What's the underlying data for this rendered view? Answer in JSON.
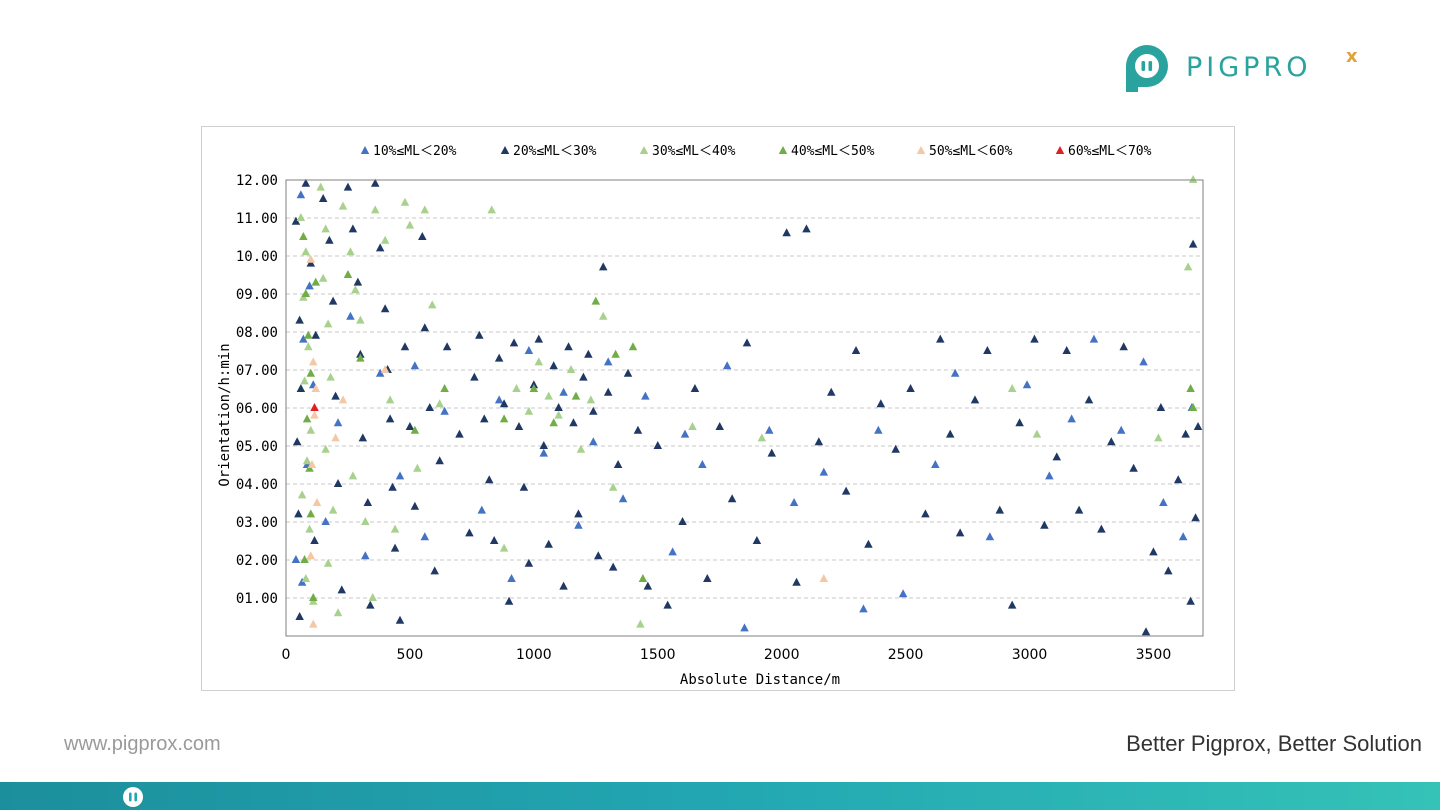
{
  "brand": {
    "name": "PIGPRO",
    "suffix": "x",
    "color_primary": "#2aa39e",
    "color_accent": "#e0a23a"
  },
  "footer": {
    "url": "www.pigprox.com",
    "slogan": "Better Pigprox, Better Solution",
    "bar_color": "#22a7b2"
  },
  "chart_data": {
    "type": "scatter",
    "marker": "triangle",
    "xlabel": "Absolute Distance/m",
    "ylabel": "Orientation/h:min",
    "xlim": [
      0,
      3700
    ],
    "ylim": [
      0,
      12
    ],
    "xticks": [
      0,
      500,
      1000,
      1500,
      2000,
      2500,
      3000,
      3500
    ],
    "yticks": [
      1,
      2,
      3,
      4,
      5,
      6,
      7,
      8,
      9,
      10,
      11,
      12
    ],
    "ytick_labels": [
      "01.00",
      "02.00",
      "03.00",
      "04.00",
      "05.00",
      "06.00",
      "07.00",
      "08.00",
      "09.00",
      "10.00",
      "11.00",
      "12.00"
    ],
    "grid": "horizontal dashed",
    "legend_position": "top",
    "series": [
      {
        "name": "10%≤ML＜20%",
        "color": "#4472c4",
        "points": [
          [
            60,
            11.6
          ],
          [
            70,
            7.8
          ],
          [
            85,
            4.5
          ],
          [
            40,
            2.0
          ],
          [
            65,
            1.4
          ],
          [
            95,
            9.2
          ],
          [
            110,
            6.6
          ],
          [
            160,
            3.0
          ],
          [
            210,
            5.6
          ],
          [
            260,
            8.4
          ],
          [
            320,
            2.1
          ],
          [
            380,
            6.9
          ],
          [
            460,
            4.2
          ],
          [
            520,
            7.1
          ],
          [
            560,
            2.6
          ],
          [
            640,
            5.9
          ],
          [
            790,
            3.3
          ],
          [
            860,
            6.2
          ],
          [
            910,
            1.5
          ],
          [
            980,
            7.5
          ],
          [
            1040,
            4.8
          ],
          [
            1120,
            6.4
          ],
          [
            1180,
            2.9
          ],
          [
            1240,
            5.1
          ],
          [
            1300,
            7.2
          ],
          [
            1360,
            3.6
          ],
          [
            1450,
            6.3
          ],
          [
            1560,
            2.2
          ],
          [
            1610,
            5.3
          ],
          [
            1680,
            4.5
          ],
          [
            1780,
            7.1
          ],
          [
            1850,
            0.2
          ],
          [
            1950,
            5.4
          ],
          [
            2050,
            3.5
          ],
          [
            2170,
            4.3
          ],
          [
            2330,
            0.7
          ],
          [
            2390,
            5.4
          ],
          [
            2490,
            1.1
          ],
          [
            2620,
            4.5
          ],
          [
            2700,
            6.9
          ],
          [
            2840,
            2.6
          ],
          [
            2990,
            6.6
          ],
          [
            3080,
            4.2
          ],
          [
            3170,
            5.7
          ],
          [
            3260,
            7.8
          ],
          [
            3370,
            5.4
          ],
          [
            3460,
            7.2
          ],
          [
            3540,
            3.5
          ],
          [
            3620,
            2.6
          ],
          [
            3655,
            6.0
          ]
        ]
      },
      {
        "name": "20%≤ML＜30%",
        "color": "#203864",
        "points": [
          [
            40,
            10.9
          ],
          [
            55,
            8.3
          ],
          [
            60,
            6.5
          ],
          [
            45,
            5.1
          ],
          [
            50,
            3.2
          ],
          [
            55,
            0.5
          ],
          [
            80,
            11.9
          ],
          [
            100,
            9.8
          ],
          [
            120,
            7.9
          ],
          [
            115,
            2.5
          ],
          [
            150,
            11.5
          ],
          [
            175,
            10.4
          ],
          [
            190,
            8.8
          ],
          [
            200,
            6.3
          ],
          [
            210,
            4.0
          ],
          [
            225,
            1.2
          ],
          [
            250,
            11.8
          ],
          [
            270,
            10.7
          ],
          [
            290,
            9.3
          ],
          [
            300,
            7.4
          ],
          [
            310,
            5.2
          ],
          [
            330,
            3.5
          ],
          [
            340,
            0.8
          ],
          [
            360,
            11.9
          ],
          [
            380,
            10.2
          ],
          [
            400,
            8.6
          ],
          [
            410,
            7.0
          ],
          [
            420,
            5.7
          ],
          [
            430,
            3.9
          ],
          [
            440,
            2.3
          ],
          [
            460,
            0.4
          ],
          [
            480,
            7.6
          ],
          [
            500,
            5.5
          ],
          [
            520,
            3.4
          ],
          [
            550,
            10.5
          ],
          [
            560,
            8.1
          ],
          [
            580,
            6.0
          ],
          [
            600,
            1.7
          ],
          [
            620,
            4.6
          ],
          [
            650,
            7.6
          ],
          [
            700,
            5.3
          ],
          [
            740,
            2.7
          ],
          [
            760,
            6.8
          ],
          [
            780,
            7.9
          ],
          [
            800,
            5.7
          ],
          [
            820,
            4.1
          ],
          [
            840,
            2.5
          ],
          [
            860,
            7.3
          ],
          [
            880,
            6.1
          ],
          [
            900,
            0.9
          ],
          [
            920,
            7.7
          ],
          [
            940,
            5.5
          ],
          [
            960,
            3.9
          ],
          [
            980,
            1.9
          ],
          [
            1000,
            6.6
          ],
          [
            1020,
            7.8
          ],
          [
            1040,
            5.0
          ],
          [
            1060,
            2.4
          ],
          [
            1080,
            7.1
          ],
          [
            1100,
            6.0
          ],
          [
            1120,
            1.3
          ],
          [
            1140,
            7.6
          ],
          [
            1160,
            5.6
          ],
          [
            1180,
            3.2
          ],
          [
            1200,
            6.8
          ],
          [
            1220,
            7.4
          ],
          [
            1240,
            5.9
          ],
          [
            1260,
            2.1
          ],
          [
            1280,
            9.7
          ],
          [
            1300,
            6.4
          ],
          [
            1320,
            1.8
          ],
          [
            1340,
            4.5
          ],
          [
            1380,
            6.9
          ],
          [
            1420,
            5.4
          ],
          [
            1460,
            1.3
          ],
          [
            1500,
            5.0
          ],
          [
            1540,
            0.8
          ],
          [
            1600,
            3.0
          ],
          [
            1650,
            6.5
          ],
          [
            1700,
            1.5
          ],
          [
            1750,
            5.5
          ],
          [
            1800,
            3.6
          ],
          [
            1860,
            7.7
          ],
          [
            1900,
            2.5
          ],
          [
            1960,
            4.8
          ],
          [
            2020,
            10.6
          ],
          [
            2060,
            1.4
          ],
          [
            2100,
            10.7
          ],
          [
            2150,
            5.1
          ],
          [
            2200,
            6.4
          ],
          [
            2260,
            3.8
          ],
          [
            2300,
            7.5
          ],
          [
            2350,
            2.4
          ],
          [
            2400,
            6.1
          ],
          [
            2460,
            4.9
          ],
          [
            2520,
            6.5
          ],
          [
            2580,
            3.2
          ],
          [
            2640,
            7.8
          ],
          [
            2680,
            5.3
          ],
          [
            2720,
            2.7
          ],
          [
            2780,
            6.2
          ],
          [
            2830,
            7.5
          ],
          [
            2880,
            3.3
          ],
          [
            2930,
            0.8
          ],
          [
            2960,
            5.6
          ],
          [
            3020,
            7.8
          ],
          [
            3060,
            2.9
          ],
          [
            3110,
            4.7
          ],
          [
            3150,
            7.5
          ],
          [
            3200,
            3.3
          ],
          [
            3240,
            6.2
          ],
          [
            3290,
            2.8
          ],
          [
            3330,
            5.1
          ],
          [
            3380,
            7.6
          ],
          [
            3420,
            4.4
          ],
          [
            3470,
            0.1
          ],
          [
            3500,
            2.2
          ],
          [
            3530,
            6.0
          ],
          [
            3560,
            1.7
          ],
          [
            3600,
            4.1
          ],
          [
            3630,
            5.3
          ],
          [
            3650,
            0.9
          ],
          [
            3660,
            10.3
          ],
          [
            3670,
            3.1
          ],
          [
            3680,
            5.5
          ]
        ]
      },
      {
        "name": "30%≤ML＜40%",
        "color": "#a9d18e",
        "points": [
          [
            60,
            11.0
          ],
          [
            80,
            10.1
          ],
          [
            70,
            8.9
          ],
          [
            90,
            7.6
          ],
          [
            75,
            6.7
          ],
          [
            100,
            5.4
          ],
          [
            85,
            4.6
          ],
          [
            65,
            3.7
          ],
          [
            95,
            2.8
          ],
          [
            80,
            1.5
          ],
          [
            110,
            0.9
          ],
          [
            140,
            11.8
          ],
          [
            160,
            10.7
          ],
          [
            150,
            9.4
          ],
          [
            170,
            8.2
          ],
          [
            180,
            6.8
          ],
          [
            160,
            4.9
          ],
          [
            190,
            3.3
          ],
          [
            170,
            1.9
          ],
          [
            210,
            0.6
          ],
          [
            230,
            11.3
          ],
          [
            260,
            10.1
          ],
          [
            280,
            9.1
          ],
          [
            300,
            8.3
          ],
          [
            270,
            4.2
          ],
          [
            320,
            3.0
          ],
          [
            350,
            1.0
          ],
          [
            360,
            11.2
          ],
          [
            400,
            10.4
          ],
          [
            420,
            6.2
          ],
          [
            440,
            2.8
          ],
          [
            480,
            11.4
          ],
          [
            500,
            10.8
          ],
          [
            530,
            4.4
          ],
          [
            560,
            11.2
          ],
          [
            590,
            8.7
          ],
          [
            620,
            6.1
          ],
          [
            830,
            11.2
          ],
          [
            880,
            2.3
          ],
          [
            930,
            6.5
          ],
          [
            980,
            5.9
          ],
          [
            1020,
            7.2
          ],
          [
            1060,
            6.3
          ],
          [
            1100,
            5.8
          ],
          [
            1150,
            7.0
          ],
          [
            1190,
            4.9
          ],
          [
            1230,
            6.2
          ],
          [
            1280,
            8.4
          ],
          [
            1320,
            3.9
          ],
          [
            1430,
            0.3
          ],
          [
            1640,
            5.5
          ],
          [
            1920,
            5.2
          ],
          [
            2930,
            6.5
          ],
          [
            3030,
            5.3
          ],
          [
            3520,
            5.2
          ],
          [
            3640,
            9.7
          ],
          [
            3660,
            12.0
          ]
        ]
      },
      {
        "name": "40%≤ML＜50%",
        "color": "#70ad47",
        "points": [
          [
            70,
            10.5
          ],
          [
            80,
            9.0
          ],
          [
            90,
            7.9
          ],
          [
            100,
            6.9
          ],
          [
            85,
            5.7
          ],
          [
            95,
            4.4
          ],
          [
            100,
            3.2
          ],
          [
            75,
            2.0
          ],
          [
            110,
            1.0
          ],
          [
            120,
            9.3
          ],
          [
            250,
            9.5
          ],
          [
            300,
            7.3
          ],
          [
            520,
            5.4
          ],
          [
            640,
            6.5
          ],
          [
            880,
            5.7
          ],
          [
            1000,
            6.5
          ],
          [
            1080,
            5.6
          ],
          [
            1170,
            6.3
          ],
          [
            1250,
            8.8
          ],
          [
            1330,
            7.4
          ],
          [
            1400,
            7.6
          ],
          [
            1440,
            1.5
          ],
          [
            3650,
            6.5
          ],
          [
            3660,
            6.0
          ]
        ]
      },
      {
        "name": "50%≤ML＜60%",
        "color": "#f4c7a5",
        "points": [
          [
            100,
            9.9
          ],
          [
            110,
            7.2
          ],
          [
            120,
            6.5
          ],
          [
            115,
            5.8
          ],
          [
            105,
            4.5
          ],
          [
            125,
            3.5
          ],
          [
            100,
            2.1
          ],
          [
            110,
            0.3
          ],
          [
            200,
            5.2
          ],
          [
            230,
            6.2
          ],
          [
            400,
            7.0
          ],
          [
            2170,
            1.5
          ]
        ]
      },
      {
        "name": "60%≤ML＜70%",
        "color": "#e02020",
        "points": [
          [
            115,
            6.0
          ]
        ]
      }
    ]
  }
}
